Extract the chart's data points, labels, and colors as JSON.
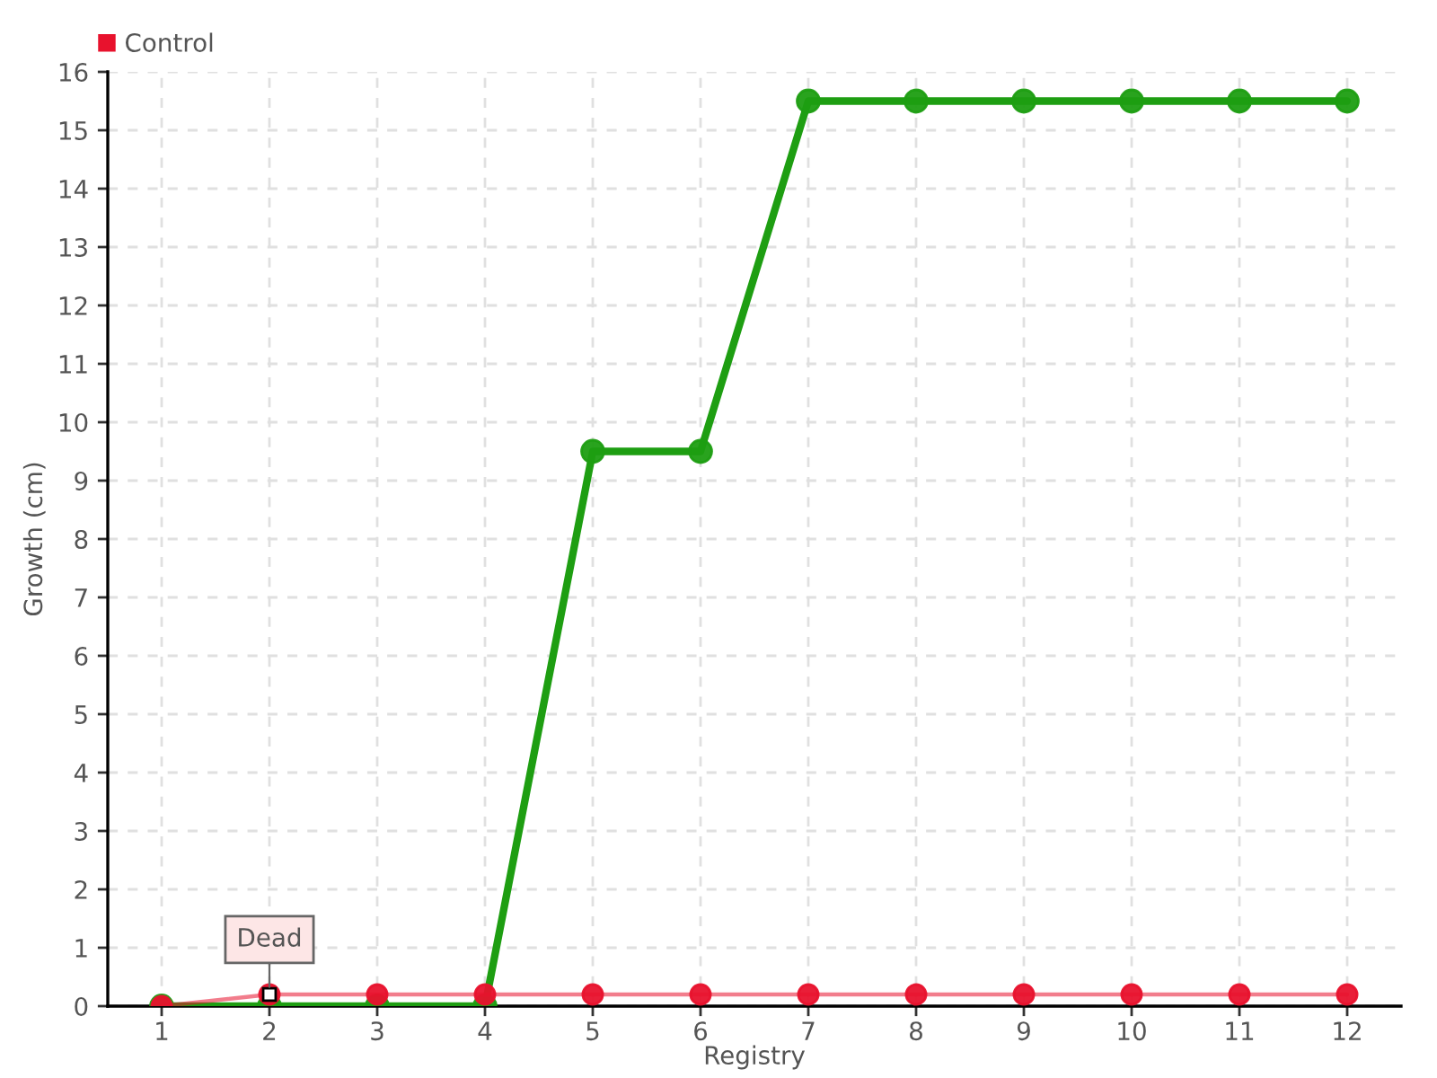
{
  "chart_data": {
    "type": "line",
    "xlabel": "Registry",
    "ylabel": "Growth (cm)",
    "categories": [
      "1",
      "2",
      "3",
      "4",
      "5",
      "6",
      "7",
      "8",
      "9",
      "10",
      "11",
      "12"
    ],
    "series": [
      {
        "color": "#1e9e12",
        "values": [
          0,
          0,
          0,
          0,
          9.5,
          9.5,
          15.5,
          15.5,
          15.5,
          15.5,
          15.5,
          15.5
        ]
      },
      {
        "name": "Control",
        "color": "#e8122d",
        "values": [
          0,
          0.2,
          0.2,
          0.2,
          0.2,
          0.2,
          0.2,
          0.2,
          0.2,
          0.2,
          0.2,
          0.2
        ]
      }
    ],
    "ylim": [
      0,
      16
    ],
    "yticks": [
      0,
      1,
      2,
      3,
      4,
      5,
      6,
      7,
      8,
      9,
      10,
      11,
      12,
      13,
      14,
      15,
      16
    ],
    "annotations": [
      {
        "text": "Dead",
        "x": "2",
        "y": 0.2
      }
    ],
    "grid": true,
    "legend": "top left",
    "marker": "circle",
    "line_style": "solid"
  }
}
